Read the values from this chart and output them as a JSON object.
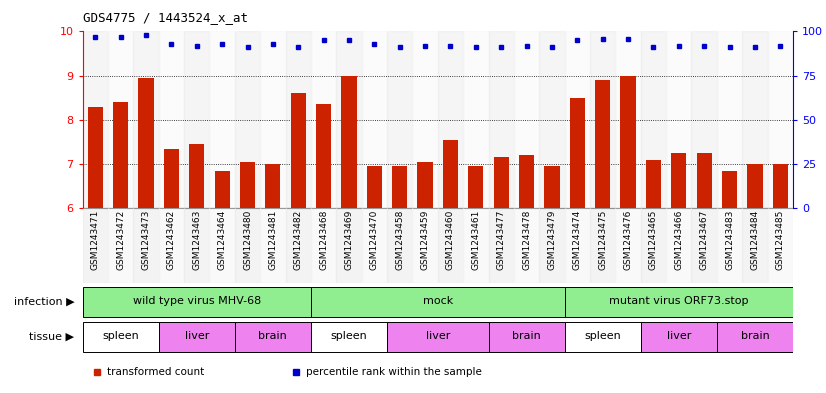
{
  "title": "GDS4775 / 1443524_x_at",
  "samples": [
    "GSM1243471",
    "GSM1243472",
    "GSM1243473",
    "GSM1243462",
    "GSM1243463",
    "GSM1243464",
    "GSM1243480",
    "GSM1243481",
    "GSM1243482",
    "GSM1243468",
    "GSM1243469",
    "GSM1243470",
    "GSM1243458",
    "GSM1243459",
    "GSM1243460",
    "GSM1243461",
    "GSM1243477",
    "GSM1243478",
    "GSM1243479",
    "GSM1243474",
    "GSM1243475",
    "GSM1243476",
    "GSM1243465",
    "GSM1243466",
    "GSM1243467",
    "GSM1243483",
    "GSM1243484",
    "GSM1243485"
  ],
  "bar_values": [
    8.3,
    8.4,
    8.95,
    7.35,
    7.45,
    6.85,
    7.05,
    7.0,
    8.6,
    8.35,
    9.0,
    6.95,
    6.95,
    7.05,
    7.55,
    6.95,
    7.15,
    7.2,
    6.95,
    8.5,
    8.9,
    9.0,
    7.1,
    7.25,
    7.25,
    6.85,
    7.0,
    7.0
  ],
  "percentile_values": [
    97,
    97,
    98,
    93,
    92,
    93,
    91,
    93,
    91,
    95,
    95,
    93,
    91,
    92,
    92,
    91,
    91,
    92,
    91,
    95,
    96,
    96,
    91,
    92,
    92,
    91,
    91,
    92
  ],
  "bar_color": "#cc2200",
  "dot_color": "#0000cc",
  "ylim_left": [
    6,
    10
  ],
  "ylim_right": [
    0,
    100
  ],
  "yticks_left": [
    6,
    7,
    8,
    9,
    10
  ],
  "yticks_right": [
    0,
    25,
    50,
    75,
    100
  ],
  "infection_groups": [
    {
      "label": "wild type virus MHV-68",
      "start": 0,
      "end": 9
    },
    {
      "label": "mock",
      "start": 9,
      "end": 19
    },
    {
      "label": "mutant virus ORF73.stop",
      "start": 19,
      "end": 28
    }
  ],
  "tissue_groups": [
    {
      "label": "spleen",
      "start": 0,
      "end": 3,
      "color": "#ffffff"
    },
    {
      "label": "liver",
      "start": 3,
      "end": 6,
      "color": "#ee82ee"
    },
    {
      "label": "brain",
      "start": 6,
      "end": 9,
      "color": "#ee82ee"
    },
    {
      "label": "spleen",
      "start": 9,
      "end": 12,
      "color": "#ffffff"
    },
    {
      "label": "liver",
      "start": 12,
      "end": 16,
      "color": "#ee82ee"
    },
    {
      "label": "brain",
      "start": 16,
      "end": 19,
      "color": "#ee82ee"
    },
    {
      "label": "spleen",
      "start": 19,
      "end": 22,
      "color": "#ffffff"
    },
    {
      "label": "liver",
      "start": 22,
      "end": 25,
      "color": "#ee82ee"
    },
    {
      "label": "brain",
      "start": 25,
      "end": 28,
      "color": "#ee82ee"
    }
  ],
  "infection_color": "#90ee90",
  "inf_boundaries": [
    0,
    9,
    19,
    28
  ],
  "legend_items": [
    {
      "label": "transformed count",
      "color": "#cc2200"
    },
    {
      "label": "percentile rank within the sample",
      "color": "#0000cc"
    }
  ],
  "background_color": "#ffffff",
  "tick_label_fontsize": 6.5,
  "bar_width": 0.6,
  "fig_width": 8.26,
  "fig_height": 3.93,
  "dpi": 100
}
